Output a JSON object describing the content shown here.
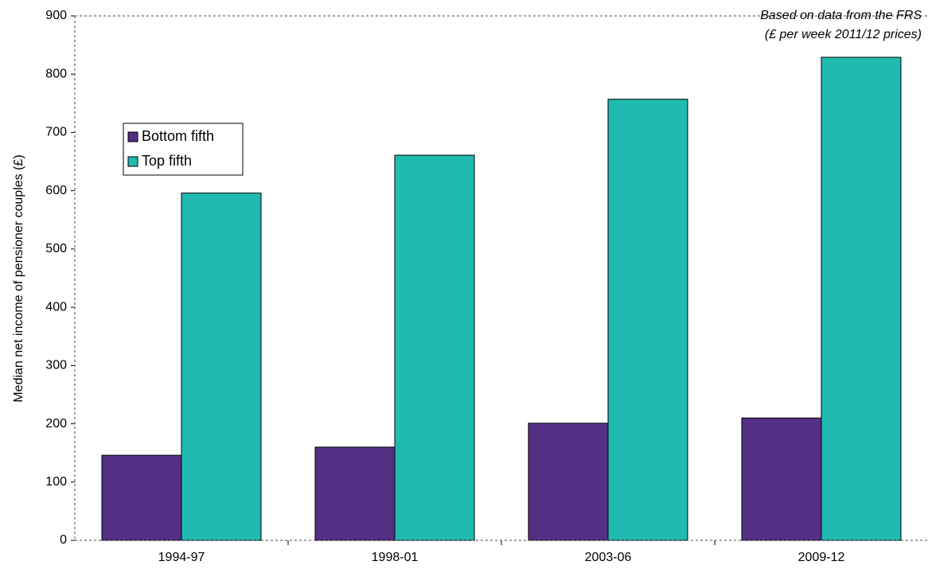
{
  "chart_data": {
    "type": "bar",
    "y_label": "Median net income of pensioner couples (£)",
    "annotations": [
      "Based on data from the FRS",
      "(£ per week 2011/12 prices)"
    ],
    "categories": [
      "1994-97",
      "1998-01",
      "2003-06",
      "2009-12"
    ],
    "series": [
      {
        "name": "Bottom fifth",
        "color": "#543085",
        "values": [
          146,
          160,
          201,
          210
        ]
      },
      {
        "name": "Top fifth",
        "color": "#20bab0",
        "values": [
          596,
          661,
          757,
          829
        ]
      }
    ],
    "ylim": [
      0,
      900
    ],
    "yticks": [
      0,
      100,
      200,
      300,
      400,
      500,
      600,
      700,
      800,
      900
    ],
    "legend": "upper left"
  }
}
